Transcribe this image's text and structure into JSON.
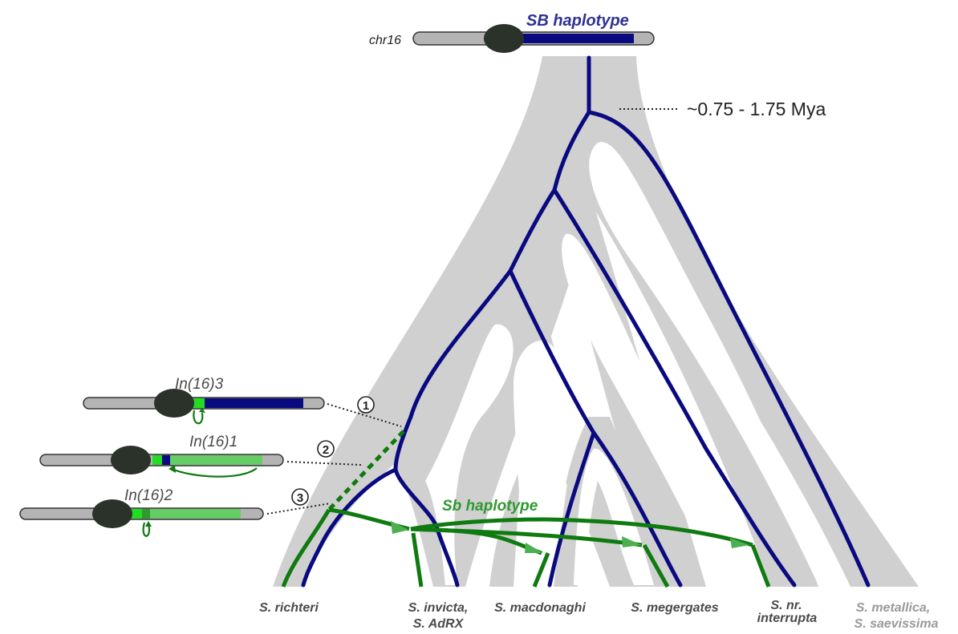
{
  "header": {
    "chr_label": "chr16",
    "sb_upper_label": "SB haplotype"
  },
  "time_annotation": "~0.75 - 1.75 Mya",
  "sb_lower_label": "Sb haplotype",
  "inversions": [
    {
      "label": "In(16)3",
      "marker": "1"
    },
    {
      "label": "In(16)1",
      "marker": "2"
    },
    {
      "label": "In(16)2",
      "marker": "3"
    }
  ],
  "species": [
    {
      "line1": "S. richteri",
      "line2": ""
    },
    {
      "line1": "S. invicta,",
      "line2": "S. AdRX"
    },
    {
      "line1": "S. macdonaghi",
      "line2": ""
    },
    {
      "line1": "S. megergates",
      "line2": ""
    },
    {
      "line1": "S. nr.",
      "line2": "interrupta"
    },
    {
      "line1": "S. metallica,",
      "line2": "S. saevissima"
    }
  ],
  "colors": {
    "tree_bg": "#d0d0d0",
    "sb_upper": "#0a0a80",
    "sb_lower": "#0f7a10",
    "inv_light": "#66cc66",
    "inv_bright": "#22dd22",
    "centromere": "#2a322a",
    "chrom_gray": "#b4b4b4",
    "species_text": "#4a4a4a",
    "species_text_light": "#999999"
  }
}
